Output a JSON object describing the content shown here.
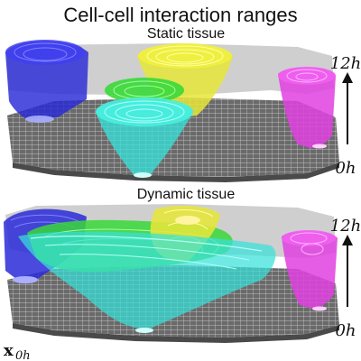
{
  "title": "Cell-cell interaction ranges",
  "panels": {
    "static": {
      "label": "Static tissue"
    },
    "dynamic": {
      "label": "Dynamic tissue"
    }
  },
  "time_axis": {
    "top": "12h",
    "bottom": "0h"
  },
  "position_label": {
    "symbol": "x",
    "subscript": "0h"
  },
  "colors": {
    "blue": "#2a2ad8",
    "yellow": "#e6e63a",
    "green": "#38d838",
    "cyan": "#38e0d8",
    "magenta": "#e040e0",
    "tissue_gray": "#c8c8c8",
    "grid_dark": "#707070"
  }
}
